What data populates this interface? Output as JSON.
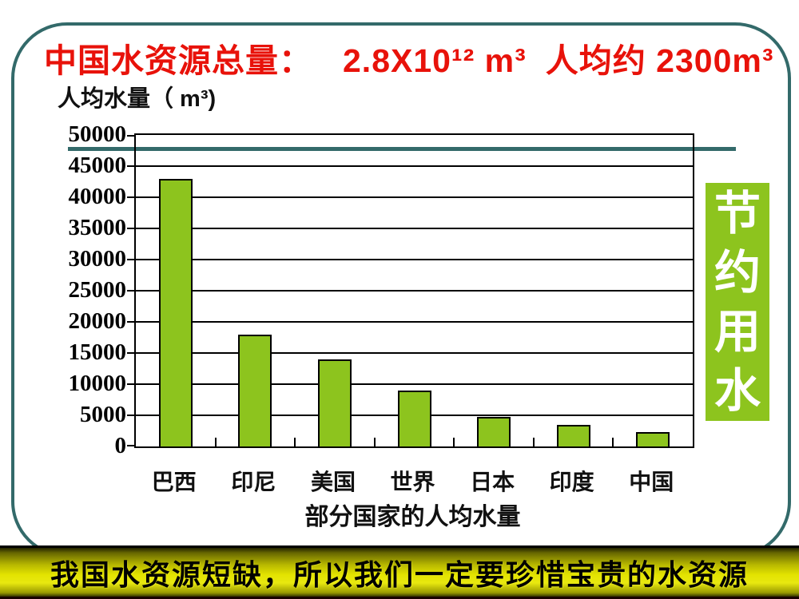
{
  "slide": {
    "title": {
      "part1": "中国水资源总量：",
      "part2": "2.8X10¹² m³",
      "part3": "人均约 2300m³",
      "color": "#E8120A"
    },
    "side_banner": {
      "text": "节约用水",
      "bg_color": "#8DC41E",
      "text_color": "#FFFFFF"
    },
    "bottom_banner": {
      "text": "我国水资源短缺，所以我们一定要珍惜宝贵的水资源",
      "bg_color": "#D9D900",
      "text_color": "#000000"
    },
    "frame_color": "#336A6A",
    "decor_line_color": "#336A6A"
  },
  "chart_data": {
    "type": "bar",
    "title": "部分国家的人均水量",
    "ylabel": "人均水量（ m³)",
    "xlabel": "",
    "categories": [
      "巴西",
      "印尼",
      "美国",
      "世界",
      "日本",
      "印度",
      "中国"
    ],
    "values": [
      43000,
      18000,
      14000,
      9000,
      4800,
      3400,
      2300
    ],
    "ylim": [
      0,
      50000
    ],
    "yticks": [
      50000,
      45000,
      40000,
      35000,
      30000,
      25000,
      20000,
      15000,
      10000,
      5000,
      0
    ],
    "grid": true,
    "legend": false,
    "bar_color": "#8DC41E",
    "bar_border_color": "#000000"
  }
}
